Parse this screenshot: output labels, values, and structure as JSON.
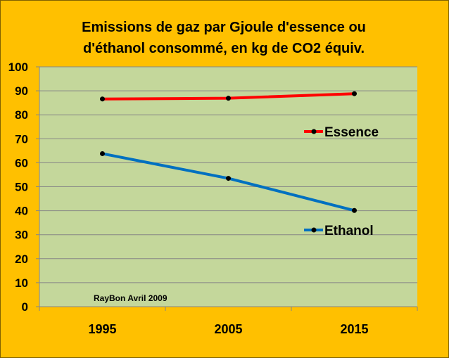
{
  "chart_data": {
    "type": "line",
    "title": [
      "Emissions de gaz par Gjoule d'essence ou",
      "d'éthanol consommé, en kg de CO2 équiv."
    ],
    "categories": [
      "1995",
      "2005",
      "2015"
    ],
    "series": [
      {
        "name": "Essence",
        "color": "#FF0000",
        "values": [
          86.6,
          86.9,
          88.8
        ]
      },
      {
        "name": "Ethanol",
        "color": "#0070C0",
        "values": [
          63.8,
          53.5,
          40.1
        ]
      }
    ],
    "ylim": [
      0,
      100
    ],
    "yticks": [
      "0",
      "10",
      "20",
      "30",
      "40",
      "50",
      "60",
      "70",
      "80",
      "90",
      "100"
    ],
    "grid": true,
    "legend": "right-inline",
    "annotation": "RayBon Avril 2009",
    "colors": {
      "background": "#FFC000",
      "plot": "#C4D79B",
      "grid": "#868686"
    }
  }
}
